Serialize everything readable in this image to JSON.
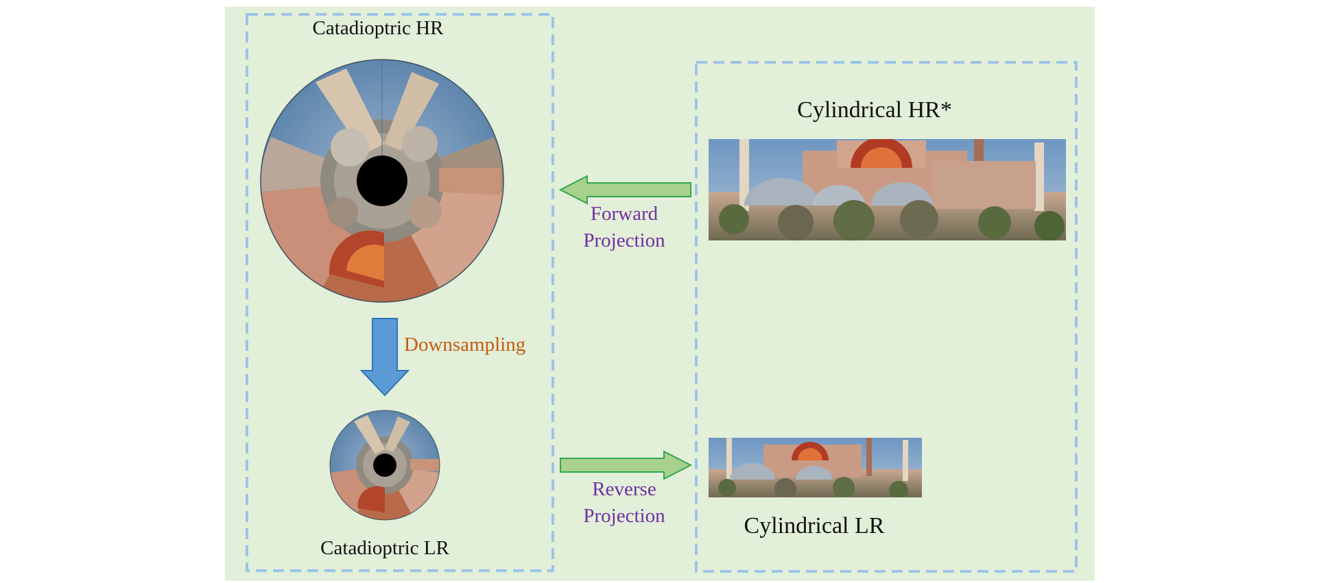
{
  "labels": {
    "catadioptric_hr": "Catadioptric HR",
    "catadioptric_lr": "Catadioptric LR",
    "cylindrical_hr": "Cylindrical HR*",
    "cylindrical_lr": "Cylindrical LR",
    "downsampling": "Downsampling",
    "forward_projection_line1": "Forward",
    "forward_projection_line2": "Projection",
    "reverse_projection_line1": "Reverse",
    "reverse_projection_line2": "Projection"
  },
  "colors": {
    "panel_background": "#e2efd9",
    "dashed_border": "#9dc3e6",
    "green_arrow_fill": "#a9d18e",
    "green_arrow_stroke": "#2fa84f",
    "blue_arrow_fill": "#5b9bd5",
    "blue_arrow_stroke": "#2e75b6",
    "projection_text": "#7030a0",
    "downsampling_text": "#c55a11",
    "label_text": "#111111"
  },
  "icons": {
    "forward_arrow": "left-arrow-icon",
    "reverse_arrow": "right-arrow-icon",
    "downsampling_arrow": "down-arrow-icon"
  }
}
